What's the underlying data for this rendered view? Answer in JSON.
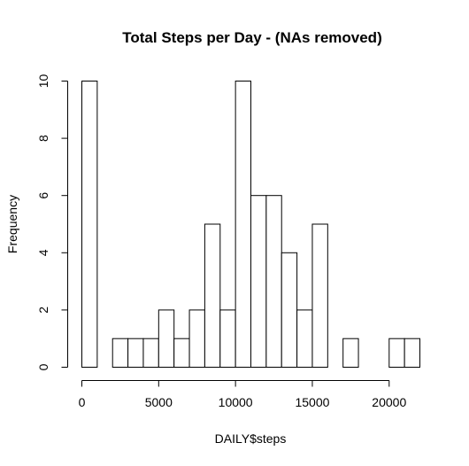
{
  "chart_data": {
    "type": "bar",
    "title": "Total Steps per Day - (NAs removed)",
    "xlabel": "DAILY$steps",
    "ylabel": "Frequency",
    "bin_width": 1000,
    "bins": [
      {
        "start": 0,
        "end": 1000,
        "count": 10
      },
      {
        "start": 1000,
        "end": 2000,
        "count": 0
      },
      {
        "start": 2000,
        "end": 3000,
        "count": 1
      },
      {
        "start": 3000,
        "end": 4000,
        "count": 1
      },
      {
        "start": 4000,
        "end": 5000,
        "count": 1
      },
      {
        "start": 5000,
        "end": 6000,
        "count": 2
      },
      {
        "start": 6000,
        "end": 7000,
        "count": 1
      },
      {
        "start": 7000,
        "end": 8000,
        "count": 2
      },
      {
        "start": 8000,
        "end": 9000,
        "count": 5
      },
      {
        "start": 9000,
        "end": 10000,
        "count": 2
      },
      {
        "start": 10000,
        "end": 11000,
        "count": 10
      },
      {
        "start": 11000,
        "end": 12000,
        "count": 6
      },
      {
        "start": 12000,
        "end": 13000,
        "count": 6
      },
      {
        "start": 13000,
        "end": 14000,
        "count": 4
      },
      {
        "start": 14000,
        "end": 15000,
        "count": 2
      },
      {
        "start": 15000,
        "end": 16000,
        "count": 5
      },
      {
        "start": 16000,
        "end": 17000,
        "count": 0
      },
      {
        "start": 17000,
        "end": 18000,
        "count": 1
      },
      {
        "start": 18000,
        "end": 19000,
        "count": 0
      },
      {
        "start": 19000,
        "end": 20000,
        "count": 0
      },
      {
        "start": 20000,
        "end": 21000,
        "count": 1
      },
      {
        "start": 21000,
        "end": 22000,
        "count": 1
      }
    ],
    "xlim": [
      0,
      22000
    ],
    "ylim": [
      0,
      10
    ],
    "x_ticks": [
      0,
      5000,
      10000,
      15000,
      20000
    ],
    "y_ticks": [
      0,
      2,
      4,
      6,
      8,
      10
    ],
    "x_tick_labels": [
      "0",
      "5000",
      "10000",
      "15000",
      "20000"
    ],
    "y_tick_labels": [
      "0",
      "2",
      "4",
      "6",
      "8",
      "10"
    ],
    "grid": false,
    "colors": {
      "bar_fill": "#ffffff",
      "bar_stroke": "#000000"
    }
  }
}
